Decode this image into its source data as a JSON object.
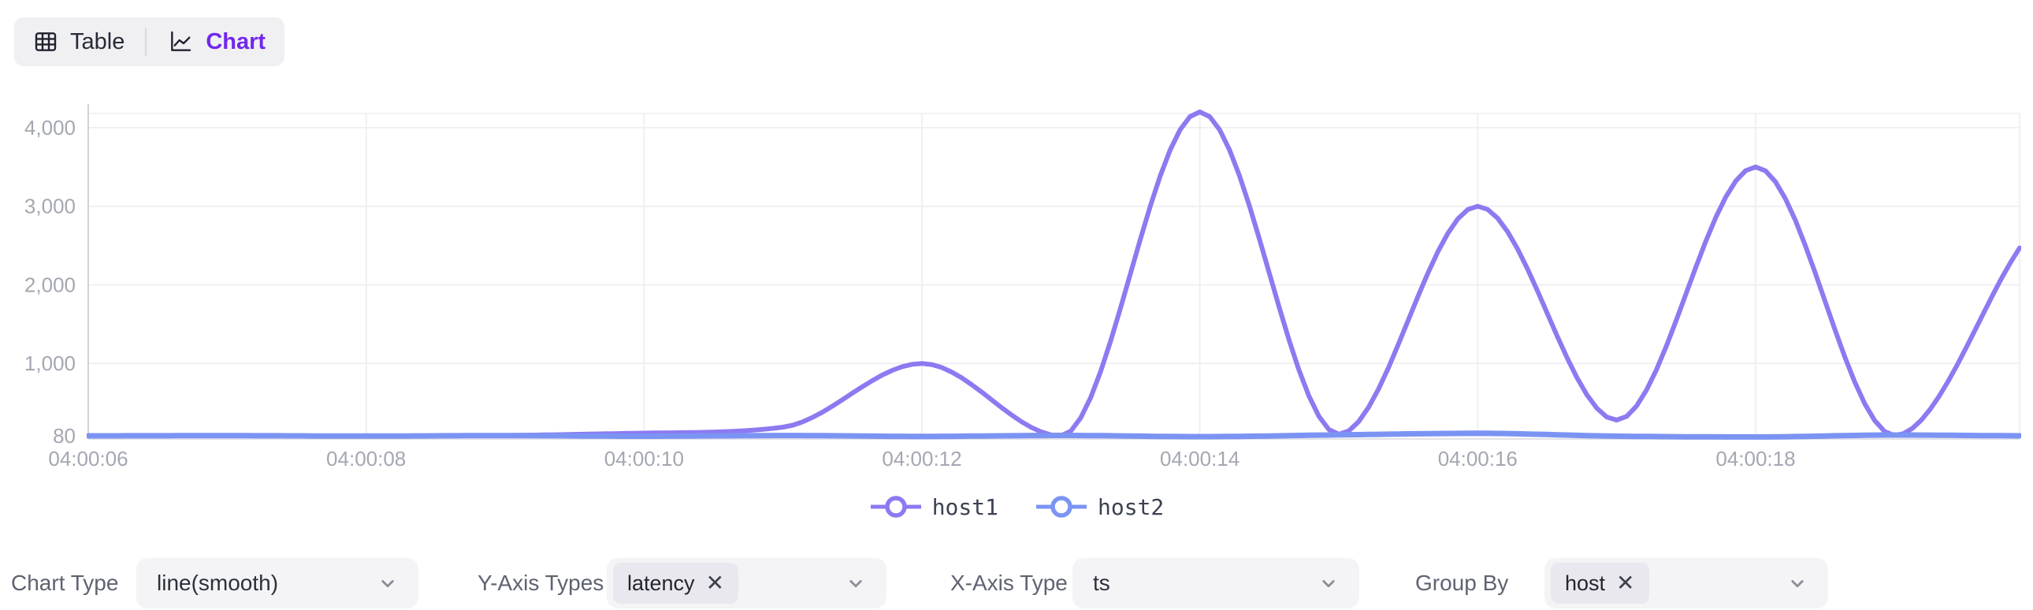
{
  "view_toggle": {
    "table_label": "Table",
    "chart_label": "Chart",
    "active": "Chart",
    "active_color": "#7127ee"
  },
  "chart_data": {
    "type": "line",
    "smooth": true,
    "grid": true,
    "legend_position": "bottom",
    "x_unit": "time (hh:mm:ss)",
    "x_ticks": [
      {
        "t": 6,
        "label": "04:00:06"
      },
      {
        "t": 8,
        "label": "04:00:08"
      },
      {
        "t": 10,
        "label": "04:00:10"
      },
      {
        "t": 12,
        "label": "04:00:12"
      },
      {
        "t": 14,
        "label": "04:00:14"
      },
      {
        "t": 16,
        "label": "04:00:16"
      },
      {
        "t": 18,
        "label": "04:00:18"
      }
    ],
    "y_ticks": [
      {
        "v": 80,
        "label": "80"
      },
      {
        "v": 1000,
        "label": "1,000"
      },
      {
        "v": 2000,
        "label": "2,000"
      },
      {
        "v": 3000,
        "label": "3,000"
      },
      {
        "v": 4000,
        "label": "4,000"
      }
    ],
    "xlim": [
      6,
      19.9
    ],
    "ylim": [
      80,
      4180
    ],
    "series": [
      {
        "name": "host1",
        "color": "#8e79f1",
        "points": [
          [
            6,
            80
          ],
          [
            7,
            80
          ],
          [
            8,
            80
          ],
          [
            9,
            85
          ],
          [
            10,
            115
          ],
          [
            11,
            190
          ],
          [
            12,
            1000
          ],
          [
            13,
            80
          ],
          [
            14,
            4200
          ],
          [
            15,
            100
          ],
          [
            16,
            3000
          ],
          [
            17,
            280
          ],
          [
            18,
            3500
          ],
          [
            19,
            85
          ],
          [
            19.9,
            2470
          ]
        ]
      },
      {
        "name": "host2",
        "color": "#7b94f3",
        "points": [
          [
            6,
            80
          ],
          [
            7,
            82
          ],
          [
            8,
            77
          ],
          [
            9,
            83
          ],
          [
            10,
            75
          ],
          [
            11,
            84
          ],
          [
            12,
            73
          ],
          [
            13,
            85
          ],
          [
            14,
            70
          ],
          [
            15,
            92
          ],
          [
            16,
            112
          ],
          [
            17,
            76
          ],
          [
            18,
            66
          ],
          [
            19,
            90
          ],
          [
            19.9,
            80
          ]
        ]
      }
    ],
    "colors": {
      "grid_line": "#ededf2",
      "axis_line": "#d2d2da",
      "tick_label": "#a4a7b2",
      "legend_text": "#3b4150"
    }
  },
  "controls": [
    {
      "label": "Chart Type",
      "type": "select",
      "value": "line(smooth)"
    },
    {
      "label": "Y-Axis Types",
      "type": "multiselect",
      "tags": [
        "latency"
      ],
      "remove_glyph": "✕"
    },
    {
      "label": "X-Axis Type",
      "type": "select",
      "value": "ts"
    },
    {
      "label": "Group By",
      "type": "multiselect",
      "tags": [
        "host"
      ],
      "remove_glyph": "✕"
    }
  ]
}
